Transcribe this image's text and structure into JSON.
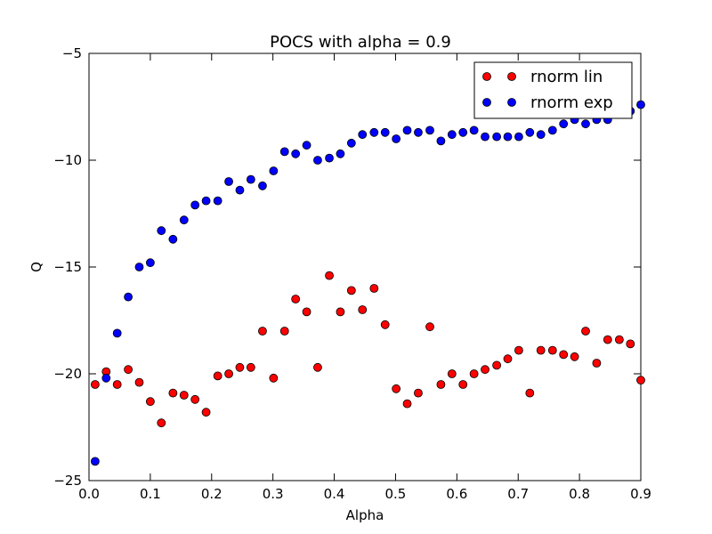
{
  "chart_data": {
    "type": "scatter",
    "title": "POCS with alpha = 0.9",
    "xlabel": "Alpha",
    "ylabel": "Q",
    "xlim": [
      0.0,
      0.9
    ],
    "ylim": [
      -25,
      -5
    ],
    "xticks": [
      0.0,
      0.1,
      0.2,
      0.3,
      0.4,
      0.5,
      0.6,
      0.7,
      0.8,
      0.9
    ],
    "xtick_labels": [
      "0.0",
      "0.1",
      "0.2",
      "0.3",
      "0.4",
      "0.5",
      "0.6",
      "0.7",
      "0.8",
      "0.9"
    ],
    "yticks": [
      -25,
      -20,
      -15,
      -10,
      -5
    ],
    "ytick_labels": [
      "−25",
      "−20",
      "−15",
      "−10",
      "−5"
    ],
    "grid": false,
    "legend_position": "top-right",
    "series": [
      {
        "name": "rnorm lin",
        "color": "#ff0000",
        "x": [
          0.01,
          0.028,
          0.046,
          0.064,
          0.082,
          0.1,
          0.118,
          0.137,
          0.155,
          0.173,
          0.191,
          0.21,
          0.228,
          0.246,
          0.264,
          0.283,
          0.301,
          0.319,
          0.337,
          0.355,
          0.373,
          0.392,
          0.41,
          0.428,
          0.446,
          0.465,
          0.483,
          0.501,
          0.519,
          0.537,
          0.556,
          0.574,
          0.592,
          0.61,
          0.628,
          0.646,
          0.665,
          0.683,
          0.701,
          0.719,
          0.737,
          0.756,
          0.774,
          0.792,
          0.81,
          0.828,
          0.846,
          0.865,
          0.883,
          0.9
        ],
        "y": [
          -20.5,
          -19.9,
          -20.5,
          -19.8,
          -20.4,
          -21.3,
          -22.3,
          -20.9,
          -21.0,
          -21.2,
          -21.8,
          -20.1,
          -20.0,
          -19.7,
          -19.7,
          -18.0,
          -20.2,
          -18.0,
          -16.5,
          -17.1,
          -19.7,
          -15.4,
          -17.1,
          -16.1,
          -17.0,
          -16.0,
          -17.7,
          -20.7,
          -21.4,
          -20.9,
          -17.8,
          -20.5,
          -20.0,
          -20.5,
          -20.0,
          -19.8,
          -19.6,
          -19.3,
          -18.9,
          -20.9,
          -18.9,
          -18.9,
          -19.1,
          -19.2,
          -18.0,
          -19.5,
          -18.4,
          -18.4,
          -18.6,
          -20.3
        ]
      },
      {
        "name": "rnorm exp",
        "color": "#0000ff",
        "x": [
          0.01,
          0.028,
          0.046,
          0.064,
          0.082,
          0.1,
          0.118,
          0.137,
          0.155,
          0.173,
          0.191,
          0.21,
          0.228,
          0.246,
          0.264,
          0.283,
          0.301,
          0.319,
          0.337,
          0.355,
          0.373,
          0.392,
          0.41,
          0.428,
          0.446,
          0.465,
          0.483,
          0.501,
          0.519,
          0.537,
          0.556,
          0.574,
          0.592,
          0.61,
          0.628,
          0.646,
          0.665,
          0.683,
          0.701,
          0.719,
          0.737,
          0.756,
          0.774,
          0.792,
          0.81,
          0.828,
          0.846,
          0.865,
          0.883,
          0.9
        ],
        "y": [
          -24.1,
          -20.2,
          -18.1,
          -16.4,
          -15.0,
          -14.8,
          -13.3,
          -13.7,
          -12.8,
          -12.1,
          -11.9,
          -11.9,
          -11.0,
          -11.4,
          -10.9,
          -11.2,
          -10.5,
          -9.6,
          -9.7,
          -9.3,
          -10.0,
          -9.9,
          -9.7,
          -9.2,
          -8.8,
          -8.7,
          -8.7,
          -9.0,
          -8.6,
          -8.7,
          -8.6,
          -9.1,
          -8.8,
          -8.7,
          -8.6,
          -8.9,
          -8.9,
          -8.9,
          -8.9,
          -8.7,
          -8.8,
          -8.6,
          -8.3,
          -8.1,
          -8.3,
          -8.1,
          -8.1,
          -7.8,
          -7.7,
          -7.4
        ]
      }
    ]
  }
}
